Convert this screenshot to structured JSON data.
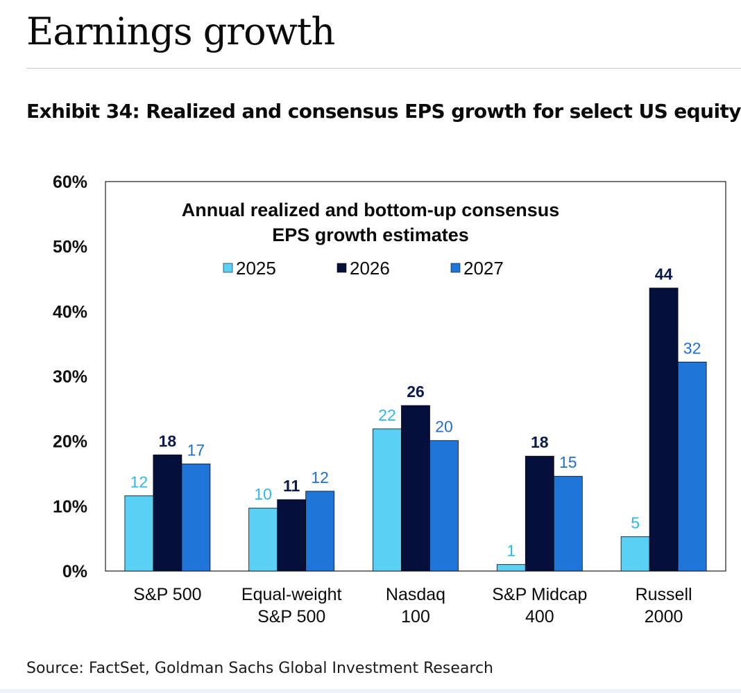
{
  "page": {
    "title": "Earnings growth",
    "exhibit_title": "Exhibit 34: Realized and consensus EPS growth for select US equity",
    "source": "Source: FactSet, Goldman Sachs Global Investment Research"
  },
  "colors": {
    "s2025": "#5bd0f5",
    "s2026": "#040f3c",
    "s2027": "#1f75d8",
    "label2025": "#2cb8ea",
    "label2026": "#0b1a4a",
    "label2027": "#1f6fd0"
  },
  "chart_data": {
    "type": "bar",
    "title_lines": [
      "Annual realized and bottom-up consensus",
      "EPS growth estimates"
    ],
    "categories": [
      [
        "S&P 500"
      ],
      [
        "Equal-weight",
        "S&P 500"
      ],
      [
        "Nasdaq",
        "100"
      ],
      [
        "S&P Midcap",
        "400"
      ],
      [
        "Russell",
        "2000"
      ]
    ],
    "series": [
      {
        "name": "2025",
        "values": [
          11.6,
          9.7,
          21.9,
          1.0,
          5.3
        ],
        "labels": [
          "12",
          "10",
          "22",
          "1",
          "5"
        ]
      },
      {
        "name": "2026",
        "values": [
          17.9,
          11.0,
          25.5,
          17.7,
          43.6
        ],
        "labels": [
          "18",
          "11",
          "26",
          "18",
          "44"
        ]
      },
      {
        "name": "2027",
        "values": [
          16.5,
          12.3,
          20.1,
          14.6,
          32.2
        ],
        "labels": [
          "17",
          "12",
          "20",
          "15",
          "32"
        ]
      }
    ],
    "ylim": [
      0,
      60
    ],
    "yticks": [
      0,
      10,
      20,
      30,
      40,
      50,
      60
    ],
    "ytick_labels": [
      "0%",
      "10%",
      "20%",
      "30%",
      "40%",
      "50%",
      "60%"
    ],
    "legend_position": "top-center",
    "grid": false
  }
}
